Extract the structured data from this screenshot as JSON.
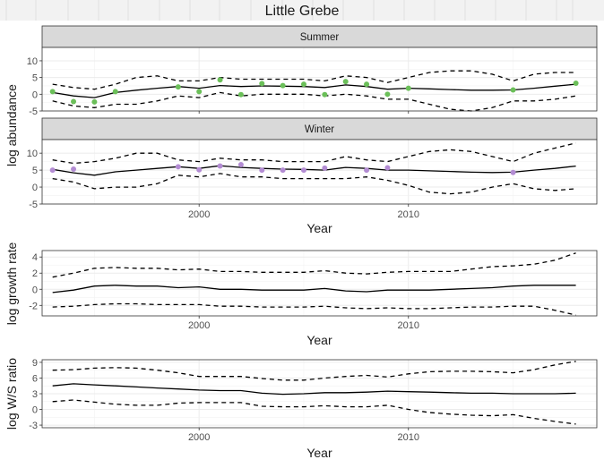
{
  "title": "Little Grebe",
  "colors": {
    "summer_points": "#6BBF59",
    "winter_points": "#B38CD3",
    "line": "#000000",
    "strip_fill": "#D9D9D9",
    "grid": "#EBEBEB"
  },
  "chart_data": [
    {
      "type": "line",
      "facet": "Summer",
      "ylabel": "log abundance",
      "xlabel": "Year",
      "xlim": [
        1992.5,
        2019
      ],
      "ylim": [
        -5,
        14
      ],
      "yticks": [
        -5,
        0,
        5,
        10
      ],
      "xticks": [
        2000,
        2010
      ],
      "x": [
        1993,
        1994,
        1995,
        1996,
        1997,
        1998,
        1999,
        2000,
        2001,
        2002,
        2003,
        2004,
        2005,
        2006,
        2007,
        2008,
        2009,
        2010,
        2011,
        2012,
        2013,
        2014,
        2015,
        2016,
        2017,
        2018
      ],
      "series": [
        {
          "role": "estimate",
          "style": "solid",
          "values": [
            0.5,
            -0.5,
            -1,
            0.5,
            1.2,
            1.8,
            2.3,
            1.8,
            2.6,
            2.3,
            2.5,
            2.4,
            2.3,
            2.0,
            2.8,
            2.3,
            1.5,
            1.8,
            1.6,
            1.4,
            1.2,
            1.2,
            1.3,
            1.8,
            2.4,
            3.0
          ]
        },
        {
          "role": "upper",
          "style": "dashed",
          "values": [
            3,
            2,
            1.5,
            3,
            5,
            5.5,
            4,
            4,
            5,
            4.5,
            4.5,
            4.5,
            4.5,
            4,
            5.5,
            5,
            3.5,
            5,
            6.5,
            7,
            7,
            6,
            4,
            6,
            6.5,
            6.5
          ]
        },
        {
          "role": "lower",
          "style": "dashed",
          "values": [
            -2,
            -3.5,
            -4,
            -3,
            -3,
            -2,
            -0.5,
            -1,
            0.5,
            -0.5,
            0,
            0,
            0,
            -0.5,
            0,
            -0.5,
            -1.5,
            -1.5,
            -3,
            -4.5,
            -5,
            -4,
            -2,
            -2,
            -1.5,
            -0.5
          ]
        }
      ],
      "points": {
        "x": [
          1993,
          1994,
          1995,
          1996,
          1999,
          2000,
          2001,
          2002,
          2003,
          2004,
          2005,
          2006,
          2007,
          2008,
          2009,
          2010,
          2015,
          2018
        ],
        "y": [
          0.8,
          -2.2,
          -2.3,
          0.8,
          2.2,
          0.8,
          4.3,
          -0.1,
          3.2,
          2.6,
          3.0,
          -0.1,
          3.8,
          3.0,
          0,
          1.8,
          1.3,
          3.3
        ]
      }
    },
    {
      "type": "line",
      "facet": "Winter",
      "ylabel": "log abundance",
      "xlabel": "Year",
      "xlim": [
        1992.5,
        2019
      ],
      "ylim": [
        -5,
        14
      ],
      "yticks": [
        -5,
        0,
        5,
        10
      ],
      "xticks": [
        2000,
        2010
      ],
      "x": [
        1993,
        1994,
        1995,
        1996,
        1997,
        1998,
        1999,
        2000,
        2001,
        2002,
        2003,
        2004,
        2005,
        2006,
        2007,
        2008,
        2009,
        2010,
        2011,
        2012,
        2013,
        2014,
        2015,
        2016,
        2017,
        2018
      ],
      "series": [
        {
          "role": "estimate",
          "style": "solid",
          "values": [
            5.2,
            4.2,
            3.5,
            4.5,
            5,
            5.5,
            6,
            5.5,
            6.3,
            5.8,
            5.5,
            5.3,
            5.2,
            5.0,
            5.8,
            5.5,
            5.0,
            5.0,
            4.8,
            4.6,
            4.4,
            4.3,
            4.4,
            5.0,
            5.5,
            6.2
          ]
        },
        {
          "role": "upper",
          "style": "dashed",
          "values": [
            8,
            7,
            7.5,
            8.5,
            10,
            10,
            8,
            7.5,
            8.5,
            8,
            8,
            7.5,
            7.5,
            7.5,
            9,
            8,
            7.5,
            9,
            10.5,
            11,
            10.5,
            9,
            7.5,
            10,
            11.5,
            13
          ]
        },
        {
          "role": "lower",
          "style": "dashed",
          "values": [
            2.5,
            1.5,
            -0.5,
            0,
            0,
            1,
            3.5,
            3,
            4,
            3,
            3,
            2.5,
            2.5,
            2.5,
            2.5,
            3,
            2,
            0.5,
            -1.5,
            -2,
            -1.5,
            0,
            1,
            -0.5,
            -1,
            -0.5
          ]
        }
      ],
      "points": {
        "x": [
          1993,
          1994,
          1999,
          2000,
          2001,
          2002,
          2003,
          2004,
          2005,
          2006,
          2008,
          2009,
          2015
        ],
        "y": [
          5,
          5.3,
          6,
          5.1,
          6.2,
          6.6,
          5,
          5,
          5,
          5.6,
          5,
          5.7,
          4.3
        ]
      }
    },
    {
      "type": "line",
      "ylabel": "log growth rate",
      "xlabel": "Year",
      "xlim": [
        1992.5,
        2019
      ],
      "ylim": [
        -3.3,
        4.8
      ],
      "yticks": [
        -2,
        0,
        2,
        4
      ],
      "xticks": [
        2000,
        2010
      ],
      "x": [
        1993,
        1994,
        1995,
        1996,
        1997,
        1998,
        1999,
        2000,
        2001,
        2002,
        2003,
        2004,
        2005,
        2006,
        2007,
        2008,
        2009,
        2010,
        2011,
        2012,
        2013,
        2014,
        2015,
        2016,
        2017,
        2018
      ],
      "series": [
        {
          "role": "estimate",
          "style": "solid",
          "values": [
            -0.4,
            -0.1,
            0.4,
            0.5,
            0.4,
            0.4,
            0.2,
            0.3,
            0,
            0,
            -0.1,
            -0.1,
            -0.1,
            0.1,
            -0.2,
            -0.3,
            -0.1,
            -0.1,
            -0.1,
            0,
            0.1,
            0.2,
            0.4,
            0.5,
            0.5,
            0.5
          ]
        },
        {
          "role": "upper",
          "style": "dashed",
          "values": [
            1.5,
            2,
            2.6,
            2.7,
            2.6,
            2.6,
            2.4,
            2.5,
            2.2,
            2.2,
            2.1,
            2.1,
            2.1,
            2.3,
            2,
            1.9,
            2.1,
            2.2,
            2.2,
            2.2,
            2.5,
            2.8,
            2.9,
            3.1,
            3.6,
            4.5
          ]
        },
        {
          "role": "lower",
          "style": "dashed",
          "values": [
            -2.2,
            -2.1,
            -1.9,
            -1.8,
            -1.8,
            -1.9,
            -1.9,
            -1.9,
            -2.1,
            -2.1,
            -2.2,
            -2.2,
            -2.2,
            -2.1,
            -2.3,
            -2.4,
            -2.3,
            -2.4,
            -2.4,
            -2.3,
            -2.2,
            -2.2,
            -2.1,
            -2.1,
            -2.6,
            -3.2
          ]
        }
      ]
    },
    {
      "type": "line",
      "ylabel": "log W/S ratio",
      "xlabel": "Year",
      "xlim": [
        1992.5,
        2019
      ],
      "ylim": [
        -3.5,
        9.5
      ],
      "yticks": [
        -3,
        0,
        3,
        6,
        9
      ],
      "xticks": [
        2000,
        2010
      ],
      "x": [
        1993,
        1994,
        1995,
        1996,
        1997,
        1998,
        1999,
        2000,
        2001,
        2002,
        2003,
        2004,
        2005,
        2006,
        2007,
        2008,
        2009,
        2010,
        2011,
        2012,
        2013,
        2014,
        2015,
        2016,
        2017,
        2018
      ],
      "series": [
        {
          "role": "estimate",
          "style": "solid",
          "values": [
            4.5,
            4.9,
            4.7,
            4.5,
            4.3,
            4.1,
            3.9,
            3.7,
            3.6,
            3.6,
            3.1,
            2.9,
            3.0,
            3.2,
            3.2,
            3.3,
            3.5,
            3.4,
            3.3,
            3.2,
            3.1,
            3.1,
            3.0,
            3.0,
            3.0,
            3.1
          ]
        },
        {
          "role": "upper",
          "style": "dashed",
          "values": [
            7.5,
            7.6,
            7.9,
            8,
            7.9,
            7.5,
            7,
            6.3,
            6.3,
            6.3,
            5.9,
            5.6,
            5.6,
            6,
            6.3,
            6.5,
            6.2,
            6.8,
            7.2,
            7.3,
            7.3,
            7.2,
            7,
            7.6,
            8.5,
            9.2
          ]
        },
        {
          "role": "lower",
          "style": "dashed",
          "values": [
            1.5,
            1.8,
            1.4,
            1,
            0.8,
            0.8,
            1.2,
            1.3,
            1.3,
            1.3,
            0.6,
            0.5,
            0.5,
            0.7,
            0.5,
            0.5,
            0.8,
            0,
            -0.6,
            -0.9,
            -1.1,
            -1.2,
            -1,
            -1.7,
            -2.3,
            -2.8
          ]
        }
      ]
    }
  ]
}
